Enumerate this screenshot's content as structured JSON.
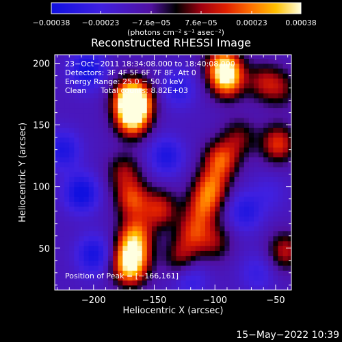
{
  "chart_data": {
    "type": "heatmap",
    "title": "Reconstructed RHESSI Image",
    "xlabel": "Heliocentric X (arcsec)",
    "ylabel": "Heliocentric Y (arcsec)",
    "xlim": [
      -232,
      -37
    ],
    "ylim": [
      16,
      207
    ],
    "x_ticks": [
      -200,
      -150,
      -100,
      -50
    ],
    "x_tick_labels": [
      "−200",
      "−150",
      "−100",
      "−50"
    ],
    "y_ticks": [
      50,
      100,
      150,
      200
    ],
    "y_tick_labels": [
      "50",
      "100",
      "150",
      "200"
    ],
    "colorbar": {
      "range": [
        -0.00038,
        0.00038
      ],
      "tick_values": [
        -0.00038,
        -0.00023,
        -7.6e-05,
        7.6e-05,
        0.00023,
        0.00038
      ],
      "tick_labels": [
        "−0.00038",
        "−0.00023",
        "−7.6e−05",
        "7.6e−05",
        "0.00023",
        "0.00038"
      ],
      "unit": "(photons cm⁻² s⁻¹ asec⁻²)"
    },
    "annotations": [
      "23−Oct−2011 18:34:08.000 to 18:40:08.000",
      "Detectors: 3F 4F 5F 6F 7F 8F, Att 0",
      "Energy Range: 25.0 − 50.0 keV",
      "Clean      Total counts: 8.82E+03"
    ],
    "peak_label": "Position of Peak = [−166,161]",
    "peaks": [
      {
        "x": -168,
        "y": 155,
        "value": 0.00038
      },
      {
        "x": -170,
        "y": 172,
        "value": 0.00033
      },
      {
        "x": -165,
        "y": 170,
        "value": 0.0003
      },
      {
        "x": -90,
        "y": 187,
        "value": 0.00036
      },
      {
        "x": -93,
        "y": 200,
        "value": 0.0003
      },
      {
        "x": -170,
        "y": 34,
        "value": 0.00036
      },
      {
        "x": -168,
        "y": 48,
        "value": 0.0003
      },
      {
        "x": -165,
        "y": 63,
        "value": 0.00022
      },
      {
        "x": -168,
        "y": 90,
        "value": 0.00025
      },
      {
        "x": -175,
        "y": 112,
        "value": 0.00016
      },
      {
        "x": -95,
        "y": 122,
        "value": 0.00028
      },
      {
        "x": -103,
        "y": 100,
        "value": 0.00026
      },
      {
        "x": -110,
        "y": 83,
        "value": 0.00022
      },
      {
        "x": -118,
        "y": 63,
        "value": 0.0002
      },
      {
        "x": -128,
        "y": 43,
        "value": 0.00016
      },
      {
        "x": -100,
        "y": 55,
        "value": 0.00014
      },
      {
        "x": -145,
        "y": 82,
        "value": 0.00022
      },
      {
        "x": -80,
        "y": 140,
        "value": 0.00014
      },
      {
        "x": -48,
        "y": 135,
        "value": 0.00026
      },
      {
        "x": -42,
        "y": 48,
        "value": 0.0002
      },
      {
        "x": -60,
        "y": 185,
        "value": 0.00016
      },
      {
        "x": -45,
        "y": 180,
        "value": 0.00012
      },
      {
        "x": -205,
        "y": 195,
        "value": -0.00028
      },
      {
        "x": -210,
        "y": 95,
        "value": -0.0003
      },
      {
        "x": -200,
        "y": 45,
        "value": -0.00026
      },
      {
        "x": -225,
        "y": 130,
        "value": -0.00024
      },
      {
        "x": -130,
        "y": 180,
        "value": -0.0002
      },
      {
        "x": -140,
        "y": 125,
        "value": -0.00024
      },
      {
        "x": -75,
        "y": 80,
        "value": -0.00022
      },
      {
        "x": -120,
        "y": 25,
        "value": -0.00018
      },
      {
        "x": -65,
        "y": 30,
        "value": -0.00016
      },
      {
        "x": -55,
        "y": 95,
        "value": -0.00012
      }
    ]
  },
  "footer": {
    "timestamp": "15−May−2022 10:39"
  }
}
